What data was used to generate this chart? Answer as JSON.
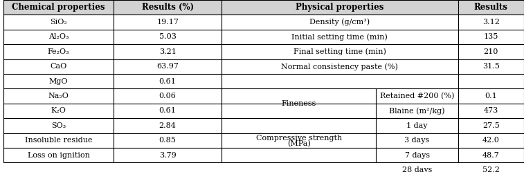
{
  "figsize": [
    7.57,
    2.49
  ],
  "dpi": 100,
  "header_bg": "#d3d3d3",
  "cell_bg": "#ffffff",
  "border_color": "#000000",
  "font_size": 8.0,
  "header_font_size": 8.5,
  "col_headers": [
    "Chemical properties",
    "Results (%)",
    "Physical properties",
    "Results"
  ],
  "chem_data": [
    [
      "SiO₂",
      "19.17"
    ],
    [
      "Al₂O₃",
      "5.03"
    ],
    [
      "Fe₂O₃",
      "3.21"
    ],
    [
      "CaO",
      "63.97"
    ],
    [
      "MgO",
      "0.61"
    ],
    [
      "Na₂O",
      "0.06"
    ],
    [
      "K₂O",
      "0.61"
    ],
    [
      "SO₃",
      "2.84"
    ],
    [
      "Insoluble residue",
      "0.85"
    ],
    [
      "Loss on ignition",
      "3.79"
    ]
  ],
  "phys_simple": [
    [
      "Density (g/cm³)",
      "3.12"
    ],
    [
      "Initial setting time (min)",
      "135"
    ],
    [
      "Final setting time (min)",
      "210"
    ],
    [
      "Normal consistency paste (%)",
      "31.5"
    ]
  ],
  "fineness_label": "Fineness",
  "fineness_rows": [
    [
      "Retained #200 (%)",
      "0.1"
    ],
    [
      "Blaine (m²/kg)",
      "473"
    ]
  ],
  "compressive_label_1": "Compressive strength",
  "compressive_label_2": "(MPa)",
  "compressive_rows": [
    [
      "1 day",
      "27.5"
    ],
    [
      "3 days",
      "42.0"
    ],
    [
      "7 days",
      "48.7"
    ],
    [
      "28 days",
      "52.2"
    ]
  ],
  "c0": 0.0,
  "c1": 0.205,
  "c2": 0.415,
  "c3": 0.695,
  "c4": 1.0
}
